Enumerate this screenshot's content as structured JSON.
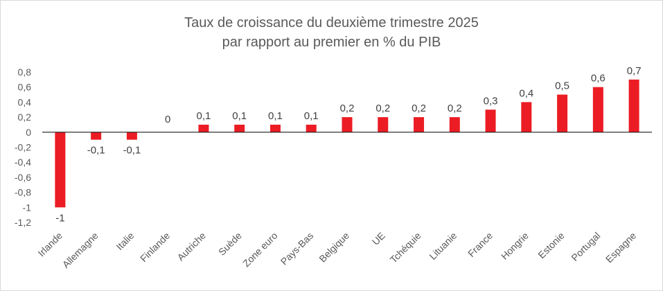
{
  "chart_data": {
    "type": "bar",
    "title": "Taux de croissance du deuxième trimestre 2025",
    "subtitle": "par rapport au premier en % du PIB",
    "xlabel": "",
    "ylabel": "",
    "categories": [
      "Irlande",
      "Allemagne",
      "Italie",
      "Finlande",
      "Autriche",
      "Suède",
      "Zone euro",
      "Pays-Bas",
      "Belgique",
      "UE",
      "Tchéquie",
      "Lituanie",
      "France",
      "Hongrie",
      "Estonie",
      "Portugal",
      "Espagne"
    ],
    "values": [
      -1,
      -0.1,
      -0.1,
      0,
      0.1,
      0.1,
      0.1,
      0.1,
      0.2,
      0.2,
      0.2,
      0.2,
      0.3,
      0.4,
      0.5,
      0.6,
      0.7
    ],
    "data_labels": [
      "-1",
      "-0,1",
      "-0,1",
      "0",
      "0,1",
      "0,1",
      "0,1",
      "0,1",
      "0,2",
      "0,2",
      "0,2",
      "0,2",
      "0,3",
      "0,4",
      "0,5",
      "0,6",
      "0,7"
    ],
    "ylim": [
      -1.2,
      0.8
    ],
    "yticks": [
      0.8,
      0.6,
      0.4,
      0.2,
      0,
      -0.2,
      -0.4,
      -0.6,
      -0.8,
      -1,
      -1.2
    ],
    "ytick_labels": [
      "0,8",
      "0,6",
      "0,4",
      "0,2",
      "0",
      "-0,2",
      "-0,4",
      "-0,6",
      "-0,8",
      "-1",
      "-1,2"
    ],
    "bar_color": "#ec1c24",
    "grid": false,
    "legend": "none"
  }
}
